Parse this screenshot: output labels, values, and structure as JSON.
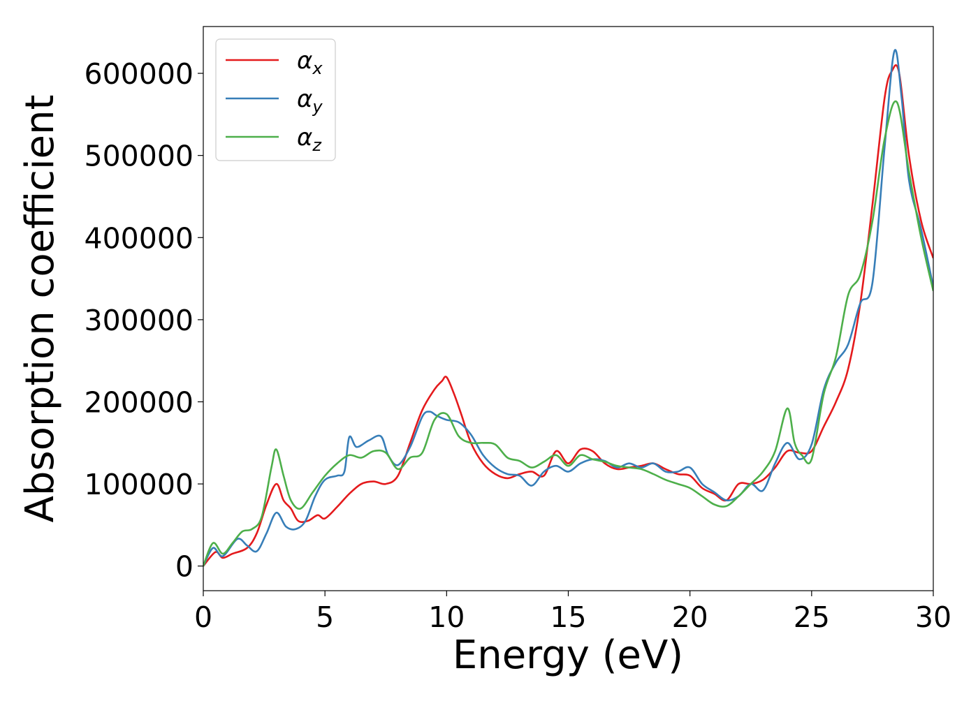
{
  "chart_data": {
    "type": "line",
    "xlabel": "Energy (eV)",
    "ylabel": "Absorption coefficient",
    "xlim": [
      0,
      30
    ],
    "ylim": [
      -30000,
      657000
    ],
    "xticks": [
      0,
      5,
      10,
      15,
      20,
      25,
      30
    ],
    "yticks": [
      0,
      100000,
      200000,
      300000,
      400000,
      500000,
      600000
    ],
    "grid": false,
    "legend_position": "top-left",
    "series": [
      {
        "name": "α",
        "subscript": "x",
        "color": "#e41a1c",
        "x": [
          0,
          0.5,
          0.8,
          1.2,
          1.8,
          2.2,
          2.6,
          3.0,
          3.3,
          3.6,
          3.9,
          4.3,
          4.7,
          5.0,
          5.5,
          6.0,
          6.5,
          7.0,
          7.5,
          8.0,
          8.5,
          9.0,
          9.5,
          9.8,
          10.0,
          10.3,
          10.6,
          11.0,
          11.5,
          12.0,
          12.5,
          13.0,
          13.5,
          14.0,
          14.5,
          15.0,
          15.5,
          16.0,
          16.5,
          17.0,
          17.5,
          18.0,
          18.5,
          19.0,
          19.5,
          20.0,
          20.5,
          21.0,
          21.5,
          22.0,
          22.5,
          23.0,
          23.5,
          24.0,
          24.5,
          25.0,
          25.5,
          26.0,
          26.5,
          27.0,
          27.5,
          28.0,
          28.3,
          28.6,
          29.0,
          29.5,
          30.0
        ],
        "y": [
          0,
          17000,
          10000,
          15000,
          22000,
          40000,
          75000,
          100000,
          80000,
          70000,
          55000,
          55000,
          62000,
          58000,
          72000,
          88000,
          100000,
          103000,
          100000,
          110000,
          150000,
          190000,
          215000,
          225000,
          230000,
          210000,
          185000,
          150000,
          125000,
          112000,
          107000,
          112000,
          115000,
          110000,
          140000,
          125000,
          142000,
          140000,
          125000,
          118000,
          120000,
          122000,
          125000,
          118000,
          112000,
          110000,
          95000,
          88000,
          80000,
          100000,
          100000,
          105000,
          120000,
          140000,
          138000,
          140000,
          170000,
          200000,
          240000,
          320000,
          440000,
          570000,
          603000,
          600000,
          500000,
          420000,
          375000
        ]
      },
      {
        "name": "α",
        "subscript": "y",
        "color": "#377eb8",
        "x": [
          0,
          0.4,
          0.8,
          1.4,
          1.8,
          2.2,
          2.6,
          3.0,
          3.4,
          3.8,
          4.2,
          4.6,
          5.0,
          5.5,
          5.8,
          6.0,
          6.3,
          6.8,
          7.3,
          7.6,
          8.0,
          8.5,
          9.0,
          9.3,
          9.6,
          10.0,
          10.5,
          11.0,
          11.5,
          12.0,
          12.5,
          13.0,
          13.5,
          14.0,
          14.5,
          15.0,
          15.5,
          16.0,
          16.5,
          17.0,
          17.5,
          18.0,
          18.5,
          19.0,
          19.5,
          20.0,
          20.5,
          21.0,
          21.5,
          22.0,
          22.5,
          23.0,
          23.5,
          24.0,
          24.5,
          25.0,
          25.5,
          26.0,
          26.5,
          27.0,
          27.5,
          28.0,
          28.4,
          28.7,
          29.0,
          29.5,
          30.0
        ],
        "y": [
          0,
          22000,
          12000,
          33000,
          25000,
          18000,
          40000,
          65000,
          48000,
          45000,
          55000,
          85000,
          105000,
          110000,
          115000,
          157000,
          145000,
          153000,
          158000,
          135000,
          123000,
          145000,
          182000,
          188000,
          183000,
          178000,
          175000,
          160000,
          135000,
          120000,
          112000,
          110000,
          98000,
          115000,
          122000,
          115000,
          125000,
          130000,
          128000,
          120000,
          125000,
          120000,
          125000,
          115000,
          115000,
          120000,
          100000,
          90000,
          80000,
          85000,
          100000,
          92000,
          125000,
          150000,
          130000,
          148000,
          215000,
          248000,
          270000,
          320000,
          345000,
          510000,
          627000,
          570000,
          470000,
          410000,
          340000
        ]
      },
      {
        "name": "α",
        "subscript": "z",
        "color": "#4daf4a",
        "x": [
          0,
          0.4,
          0.8,
          1.2,
          1.6,
          2.0,
          2.4,
          2.8,
          3.0,
          3.3,
          3.6,
          4.0,
          4.5,
          5.0,
          5.5,
          6.0,
          6.5,
          7.0,
          7.5,
          8.0,
          8.5,
          9.0,
          9.5,
          10.0,
          10.5,
          11.0,
          11.5,
          12.0,
          12.5,
          13.0,
          13.5,
          14.0,
          14.5,
          15.0,
          15.5,
          16.0,
          16.5,
          17.0,
          17.5,
          18.0,
          18.5,
          19.0,
          19.5,
          20.0,
          20.5,
          21.0,
          21.5,
          22.0,
          22.5,
          23.0,
          23.5,
          24.0,
          24.3,
          24.6,
          25.0,
          25.5,
          26.0,
          26.5,
          27.0,
          27.5,
          28.0,
          28.5,
          29.0,
          29.5,
          30.0
        ],
        "y": [
          0,
          28000,
          15000,
          28000,
          42000,
          45000,
          60000,
          120000,
          142000,
          110000,
          80000,
          70000,
          90000,
          110000,
          125000,
          135000,
          132000,
          140000,
          138000,
          118000,
          132000,
          138000,
          178000,
          185000,
          158000,
          150000,
          150000,
          148000,
          132000,
          128000,
          120000,
          127000,
          135000,
          122000,
          135000,
          130000,
          127000,
          122000,
          120000,
          118000,
          112000,
          105000,
          100000,
          95000,
          85000,
          75000,
          73000,
          85000,
          100000,
          115000,
          140000,
          192000,
          150000,
          135000,
          130000,
          210000,
          255000,
          330000,
          355000,
          420000,
          520000,
          565000,
          480000,
          400000,
          335000
        ]
      }
    ]
  }
}
